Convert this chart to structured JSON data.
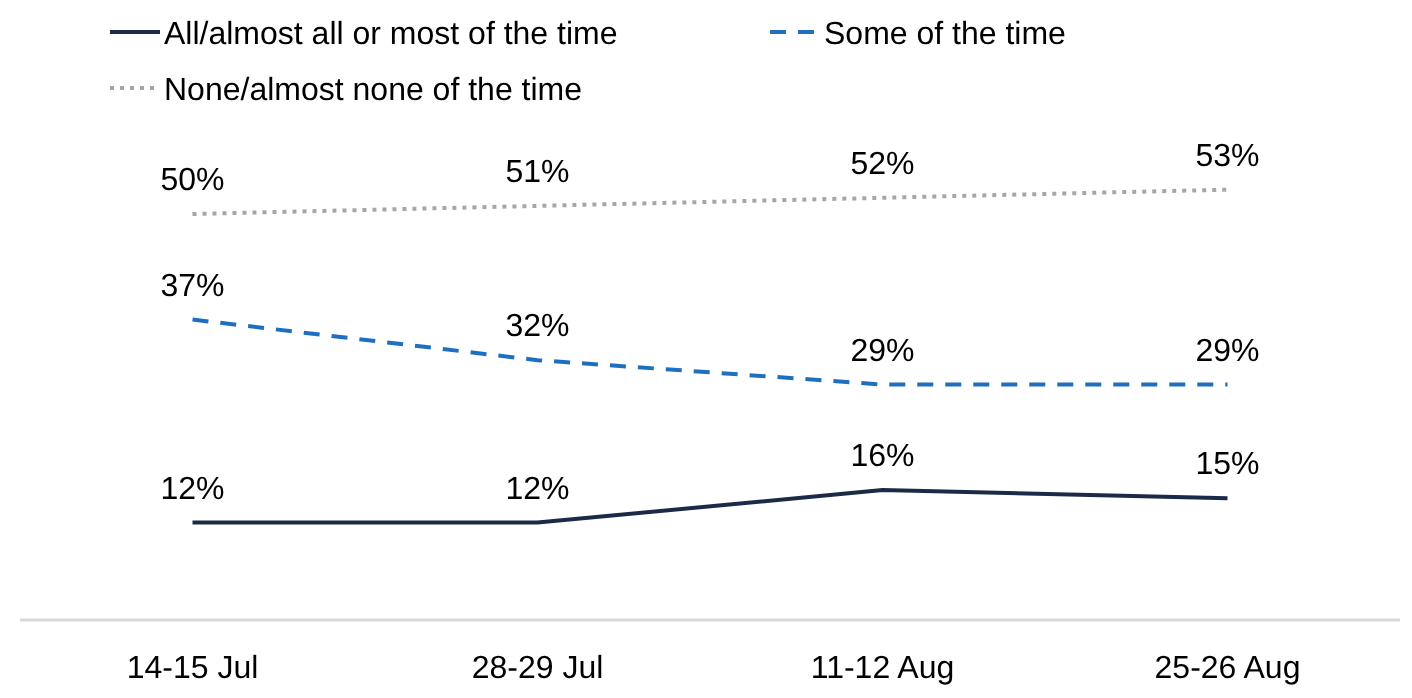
{
  "chart_data": {
    "type": "line",
    "categories": [
      "14-15 Jul",
      "28-29 Jul",
      "11-12 Aug",
      "25-26 Aug"
    ],
    "tick_labels": "x",
    "legend": "top left",
    "marker": "none",
    "series": [
      {
        "name": "All/almost all or most of the time",
        "color": "#1b2a47",
        "line_style": "solid",
        "values": [
          12,
          12,
          16,
          15
        ],
        "value_labels": [
          "12%",
          "12%",
          "16%",
          "15%"
        ]
      },
      {
        "name": "Some of the time",
        "color": "#1f6fc1",
        "line_style": "dashed",
        "values": [
          37,
          32,
          29,
          29
        ],
        "value_labels": [
          "37%",
          "32%",
          "29%",
          "29%"
        ]
      },
      {
        "name": "None/almost none of the time",
        "color": "#a6a6a6",
        "line_style": "dotted",
        "values": [
          50,
          51,
          52,
          53
        ],
        "value_labels": [
          "50%",
          "51%",
          "52%",
          "53%"
        ]
      }
    ]
  }
}
